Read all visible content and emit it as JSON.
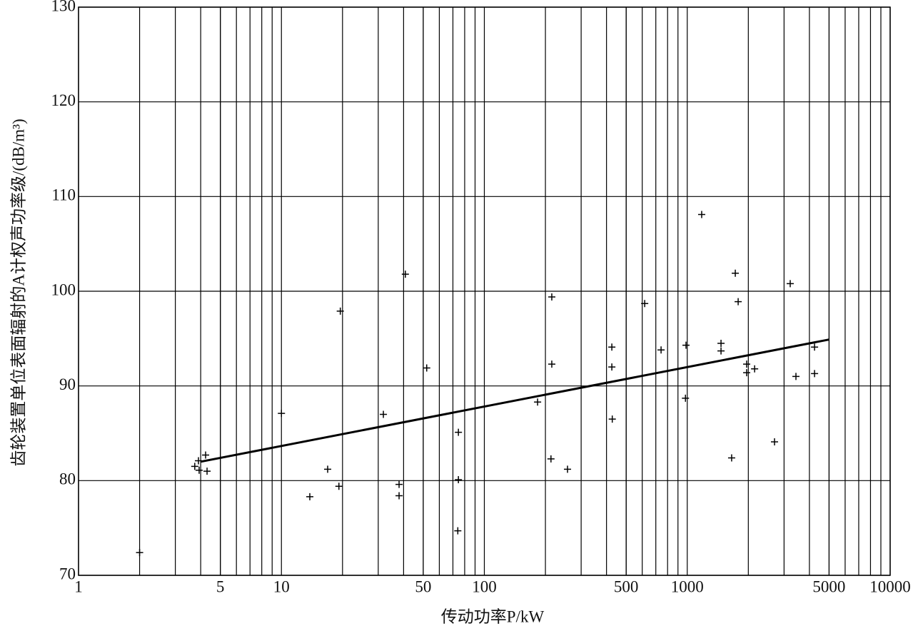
{
  "chart_data": {
    "type": "scatter",
    "x_label": "传动功率P/kW",
    "y_label": "齿轮装置单位表面辐射的A计权声功率级/(dB/m³)",
    "xscale": "log",
    "grid": true,
    "color": "#000000",
    "xlim": [
      1,
      10000
    ],
    "xticks": [
      1,
      5,
      10,
      50,
      100,
      500,
      1000,
      5000,
      10000
    ],
    "ylim": [
      70,
      130
    ],
    "yticks": [
      70,
      80,
      90,
      100,
      110,
      120,
      130
    ],
    "points": {
      "x": [
        2,
        3.74,
        3.9,
        3.93,
        4.23,
        4.3,
        10,
        13.8,
        16.9,
        19.2,
        19.5,
        31.8,
        38,
        38,
        40.8,
        52,
        74.5,
        74.5,
        74,
        183,
        215,
        215,
        213,
        257,
        425,
        425,
        427,
        617,
        743,
        986,
        980,
        1178,
        1467,
        1467,
        1655,
        1725,
        1782,
        1963,
        1963,
        2148,
        2692,
        3217,
        3433,
        4240,
        4240
      ],
      "y": [
        72.4,
        81.5,
        82.1,
        81.1,
        82.7,
        81.0,
        87.1,
        78.3,
        81.2,
        79.4,
        97.9,
        87.0,
        79.6,
        78.4,
        101.8,
        91.9,
        85.1,
        80.1,
        74.7,
        88.3,
        99.4,
        92.3,
        82.3,
        81.2,
        94.1,
        92.0,
        86.5,
        98.7,
        93.8,
        94.3,
        88.7,
        108.1,
        94.5,
        93.7,
        82.4,
        101.9,
        98.9,
        92.3,
        91.4,
        91.8,
        84.1,
        100.8,
        91.0,
        94.1,
        91.3
      ]
    },
    "fit_line": {
      "x": [
        4,
        5000
      ],
      "y": [
        82.0,
        94.9
      ]
    }
  }
}
